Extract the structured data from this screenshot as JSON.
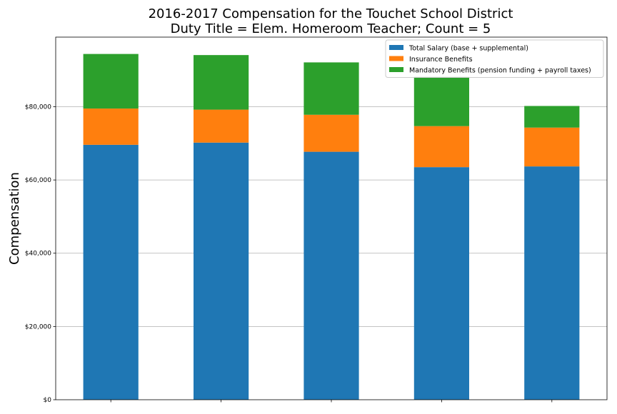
{
  "chart_data": {
    "type": "bar",
    "stacked": true,
    "title": "2016-2017 Compensation for the Touchet School District",
    "subtitle": "Duty Title = Elem. Homeroom Teacher; Count = 5",
    "xlabel": "",
    "ylabel": "Compensation",
    "ylim": [
      0,
      99000
    ],
    "yticks": [
      0,
      20000,
      40000,
      60000,
      80000
    ],
    "ytick_labels": [
      "$0",
      "$20,000",
      "$40,000",
      "$60,000",
      "$80,000"
    ],
    "grid": "horizontal",
    "legend_position": "top-right",
    "categories": [
      "",
      "",
      "",
      "",
      ""
    ],
    "series": [
      {
        "name": "Total Salary (base + supplemental)",
        "color": "#1f77b4",
        "values": [
          69600,
          70200,
          67700,
          63500,
          63700
        ]
      },
      {
        "name": "Insurance Benefits",
        "color": "#ff7f0e",
        "values": [
          9900,
          9000,
          10100,
          11200,
          10600
        ]
      },
      {
        "name": "Mandatory Benefits (pension funding + payroll taxes)",
        "color": "#2ca02c",
        "values": [
          14900,
          14900,
          14300,
          13500,
          5900
        ]
      }
    ]
  }
}
